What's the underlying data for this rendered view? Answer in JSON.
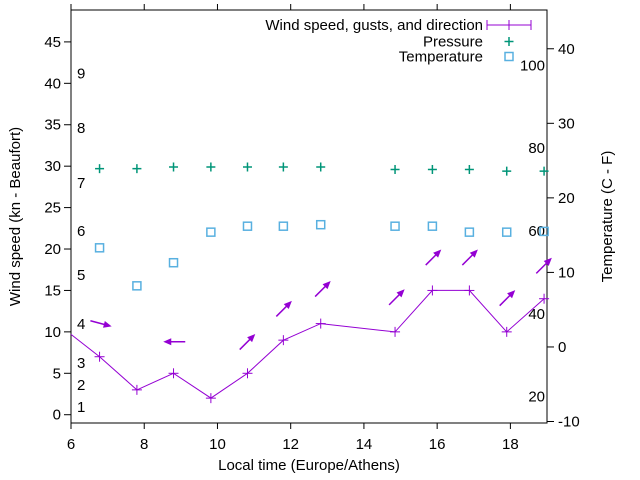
{
  "figure": {
    "background": "#ffffff",
    "colors": {
      "wind": "#9400d3",
      "pressure": "#009578",
      "temperature": "#58b0e0",
      "axis": "#000000"
    },
    "legend": {
      "position": "top-right-inside",
      "entries": [
        {
          "label": "Wind speed, gusts, and direction",
          "series": "wind",
          "marker": "errorbar-plus"
        },
        {
          "label": "Pressure",
          "series": "pressure",
          "marker": "plus"
        },
        {
          "label": "Temperature",
          "series": "temperature",
          "marker": "open-square"
        }
      ]
    }
  },
  "chart_data": {
    "type": "line",
    "title": "",
    "xlabel": "Local time (Europe/Athens)",
    "ylabel_left": "Wind speed (kn - Beaufort)",
    "ylabel_right": "Temperature (C - F)",
    "grid": false,
    "x_range": [
      6,
      19
    ],
    "x_ticks": [
      6,
      8,
      10,
      12,
      14,
      16,
      18
    ],
    "y_left_range_kn": [
      -1,
      48.85
    ],
    "y_left_ticks_kn": [
      0,
      5,
      10,
      15,
      20,
      25,
      30,
      35,
      40,
      45
    ],
    "beaufort_inside_labels": [
      {
        "label": "1",
        "kn": 0.93
      },
      {
        "label": "2",
        "kn": 3.58
      },
      {
        "label": "3",
        "kn": 6.24
      },
      {
        "label": "4",
        "kn": 10.94
      },
      {
        "label": "5",
        "kn": 16.86
      },
      {
        "label": "6",
        "kn": 22.16
      },
      {
        "label": "7",
        "kn": 27.95
      },
      {
        "label": "8",
        "kn": 34.6
      },
      {
        "label": "9",
        "kn": 41.2
      }
    ],
    "y_right_range_c": [
      -10.2,
      45.2
    ],
    "y_right_ticks_c": [
      -10,
      0,
      10,
      20,
      30,
      40
    ],
    "fahrenheit_inside_labels": [
      20,
      40,
      60,
      80,
      100
    ],
    "x": [
      6.78,
      7.8,
      8.8,
      9.82,
      10.82,
      11.8,
      12.82,
      14.85,
      15.87,
      16.88,
      17.9,
      18.92
    ],
    "series": [
      {
        "name": "Wind speed (kn)",
        "axis": "left",
        "values": [
          7,
          3,
          5,
          2,
          5,
          9,
          11,
          10,
          15,
          15,
          10,
          14
        ],
        "clipped_entry_point": {
          "x": 6.0,
          "kn": 9.7
        }
      },
      {
        "name": "Pressure (plotted on left axis, inHg)",
        "axis": "left",
        "values": [
          29.7,
          29.7,
          29.9,
          29.9,
          29.9,
          29.9,
          29.9,
          29.6,
          29.6,
          29.6,
          29.4,
          29.4
        ]
      },
      {
        "name": "Temperature (C)",
        "axis": "right",
        "values": [
          13.3,
          8.2,
          11.3,
          15.4,
          16.2,
          16.2,
          16.4,
          16.2,
          16.2,
          15.4,
          15.4,
          15.5
        ]
      }
    ],
    "wind_direction_arrows": [
      {
        "x": 6.82,
        "kn": 11.0,
        "angle_deg": -15
      },
      {
        "x": 8.82,
        "kn": 8.8,
        "angle_deg": 180
      },
      {
        "x": 10.82,
        "kn": 8.8,
        "angle_deg": 45
      },
      {
        "x": 11.82,
        "kn": 12.8,
        "angle_deg": 45
      },
      {
        "x": 12.88,
        "kn": 15.2,
        "angle_deg": 45
      },
      {
        "x": 14.9,
        "kn": 14.2,
        "angle_deg": 45
      },
      {
        "x": 15.9,
        "kn": 19.0,
        "angle_deg": 45
      },
      {
        "x": 16.9,
        "kn": 19.0,
        "angle_deg": 45
      },
      {
        "x": 17.92,
        "kn": 14.1,
        "angle_deg": 45
      },
      {
        "x": 18.92,
        "kn": 18.0,
        "angle_deg": 45
      }
    ]
  }
}
